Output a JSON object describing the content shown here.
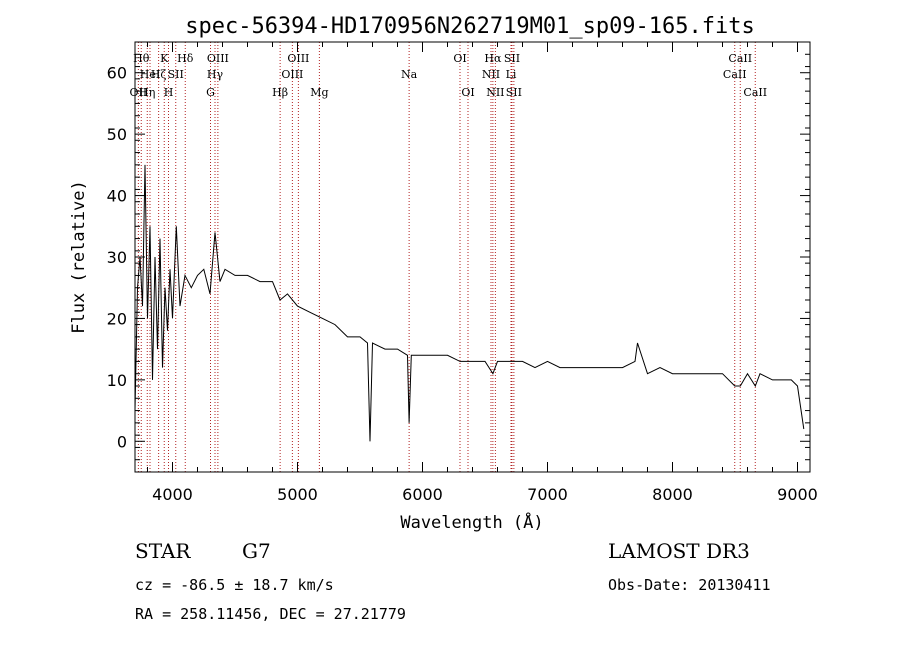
{
  "chart_data": {
    "type": "line",
    "title": "spec-56394-HD170956N262719M01_sp09-165.fits",
    "xlabel": "Wavelength (Å)",
    "ylabel": "Flux (relative)",
    "xlim": [
      3700,
      9100
    ],
    "ylim": [
      -5,
      65
    ],
    "x_ticks": [
      4000,
      5000,
      6000,
      7000,
      8000,
      9000
    ],
    "y_ticks": [
      0,
      10,
      20,
      30,
      40,
      50,
      60
    ],
    "grid": false,
    "series": [
      {
        "name": "spectrum",
        "x": [
          3700,
          3720,
          3740,
          3760,
          3780,
          3800,
          3820,
          3840,
          3860,
          3880,
          3900,
          3920,
          3940,
          3960,
          3980,
          4000,
          4030,
          4060,
          4100,
          4150,
          4200,
          4250,
          4300,
          4340,
          4380,
          4420,
          4500,
          4600,
          4700,
          4800,
          4860,
          4920,
          5000,
          5100,
          5200,
          5300,
          5400,
          5500,
          5560,
          5580,
          5600,
          5700,
          5800,
          5880,
          5893,
          5910,
          6000,
          6100,
          6200,
          6300,
          6400,
          6500,
          6563,
          6600,
          6700,
          6800,
          6900,
          7000,
          7100,
          7200,
          7300,
          7400,
          7500,
          7600,
          7700,
          7720,
          7800,
          7900,
          8000,
          8100,
          8200,
          8300,
          8400,
          8498,
          8542,
          8600,
          8662,
          8700,
          8800,
          8900,
          8950,
          9000,
          9050
        ],
        "y": [
          5,
          25,
          30,
          22,
          45,
          20,
          35,
          10,
          30,
          15,
          33,
          12,
          25,
          18,
          28,
          20,
          35,
          22,
          27,
          25,
          27,
          28,
          24,
          34,
          26,
          28,
          27,
          27,
          26,
          26,
          23,
          24,
          22,
          21,
          20,
          19,
          17,
          17,
          16,
          0,
          16,
          15,
          15,
          14,
          3,
          14,
          14,
          14,
          14,
          13,
          13,
          13,
          11,
          13,
          13,
          13,
          12,
          13,
          12,
          12,
          12,
          12,
          12,
          12,
          13,
          16,
          11,
          12,
          11,
          11,
          11,
          11,
          11,
          9,
          9,
          11,
          9,
          11,
          10,
          10,
          10,
          9,
          2
        ]
      }
    ],
    "line_markers": [
      {
        "wavelength": 3750,
        "label": "Hθ",
        "row": 0
      },
      {
        "wavelength": 3727,
        "label": "OII",
        "row": 2
      },
      {
        "wavelength": 3798,
        "label": "Hη",
        "row": 2
      },
      {
        "wavelength": 3820,
        "label": "HeI",
        "row": 1
      },
      {
        "wavelength": 3889,
        "label": "Hζ",
        "row": 1
      },
      {
        "wavelength": 3934,
        "label": "K",
        "row": 0
      },
      {
        "wavelength": 3968,
        "label": "H",
        "row": 2
      },
      {
        "wavelength": 4026,
        "label": "SII",
        "row": 1
      },
      {
        "wavelength": 4102,
        "label": "Hδ",
        "row": 0
      },
      {
        "wavelength": 4304,
        "label": "G",
        "row": 2
      },
      {
        "wavelength": 4340,
        "label": "Hγ",
        "row": 1
      },
      {
        "wavelength": 4363,
        "label": "OIII",
        "row": 0
      },
      {
        "wavelength": 4861,
        "label": "Hβ",
        "row": 2
      },
      {
        "wavelength": 4959,
        "label": "OIII",
        "row": 1
      },
      {
        "wavelength": 5007,
        "label": "OIII",
        "row": 0
      },
      {
        "wavelength": 5175,
        "label": "Mg",
        "row": 2
      },
      {
        "wavelength": 5893,
        "label": "Na",
        "row": 1
      },
      {
        "wavelength": 6300,
        "label": "OI",
        "row": 0
      },
      {
        "wavelength": 6364,
        "label": "OI",
        "row": 2
      },
      {
        "wavelength": 6548,
        "label": "NII",
        "row": 1
      },
      {
        "wavelength": 6563,
        "label": "Hα",
        "row": 0
      },
      {
        "wavelength": 6583,
        "label": "NII",
        "row": 2
      },
      {
        "wavelength": 6708,
        "label": "Li",
        "row": 1
      },
      {
        "wavelength": 6716,
        "label": "SII",
        "row": 0
      },
      {
        "wavelength": 6731,
        "label": "SII",
        "row": 2
      },
      {
        "wavelength": 8498,
        "label": "CaII",
        "row": 1
      },
      {
        "wavelength": 8542,
        "label": "CaII",
        "row": 0
      },
      {
        "wavelength": 8662,
        "label": "CaII",
        "row": 2
      }
    ],
    "marker_color": "#b22222"
  },
  "info": {
    "class": "STAR",
    "subclass": "G7",
    "survey": "LAMOST DR3",
    "cz": "cz = -86.5 ± 18.7 km/s",
    "obs_date": "Obs-Date: 20130411",
    "radec": "RA = 258.11456, DEC =  27.21779"
  }
}
